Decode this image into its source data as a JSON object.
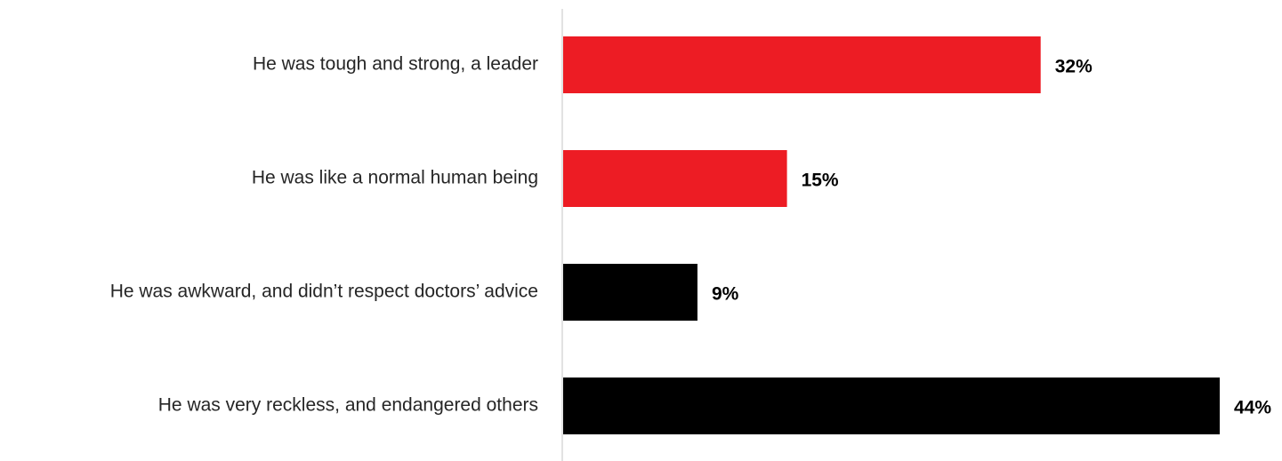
{
  "chart_data": {
    "type": "bar",
    "orientation": "horizontal",
    "categories": [
      "He was tough and strong, a leader",
      "He was like a normal human being",
      "He was awkward, and didn’t respect doctors’ advice",
      "He was very reckless, and endangered others"
    ],
    "values": [
      32,
      15,
      9,
      44
    ],
    "value_labels": [
      "32%",
      "15%",
      "9%",
      "44%"
    ],
    "bar_colors": [
      "#ed1c24",
      "#ed1c24",
      "#000000",
      "#000000"
    ],
    "title": "",
    "xlabel": "",
    "ylabel": "",
    "xlim": [
      0,
      44
    ],
    "grid": false,
    "legend": "none"
  }
}
